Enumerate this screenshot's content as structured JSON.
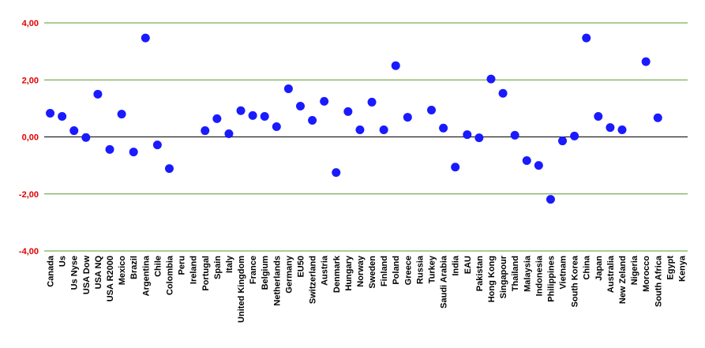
{
  "chart_data": {
    "type": "scatter",
    "categories": [
      "Canada",
      "Us",
      "Us Nyse",
      "USA Dow",
      "USA NQ",
      "USA R2000",
      "Mexico",
      "Brazil",
      "Argentina",
      "Chile",
      "Colombia",
      "Peru",
      "Ireland",
      "Portugal",
      "Spain",
      "Italy",
      "United Kingdom",
      "France",
      "Belgium",
      "Netherlands",
      "Germany",
      "EU50",
      "Switzerland",
      "Austria",
      "Denmark",
      "Hungary",
      "Norway",
      "Sweden",
      "Finland",
      "Poland",
      "Greece",
      "Russia",
      "Turkey",
      "Saudi Arabia",
      "India",
      "EAU",
      "Pakistan",
      "Hong Kong",
      "Singapour",
      "Thailand",
      "Malaysia",
      "Indonesia",
      "Philippines",
      "Vietnam",
      "South Korea",
      "China",
      "Japan",
      "Australia",
      "New Zeland",
      "Nigeria",
      "Morocco",
      "South Africa",
      "Egypt",
      "Kenya"
    ],
    "values": [
      0.83,
      0.72,
      0.22,
      -0.02,
      1.5,
      -0.44,
      0.8,
      -0.53,
      3.47,
      -0.28,
      -1.11,
      null,
      null,
      0.22,
      0.64,
      0.11,
      0.92,
      0.75,
      0.72,
      0.36,
      1.69,
      1.08,
      0.58,
      1.25,
      -1.25,
      0.89,
      0.25,
      1.22,
      0.25,
      2.5,
      0.69,
      null,
      0.94,
      0.31,
      -1.06,
      0.08,
      -0.03,
      2.03,
      1.53,
      0.06,
      -0.83,
      -1.0,
      -2.19,
      -0.14,
      0.03,
      3.47,
      0.72,
      0.33,
      0.25,
      null,
      2.64,
      0.67,
      null,
      null
    ],
    "color": "#1a1aff",
    "ylim": [
      -4,
      4
    ],
    "yticks": [
      {
        "value": -4,
        "label": "-4,00"
      },
      {
        "value": -2,
        "label": "-2,00"
      },
      {
        "value": 0,
        "label": "0,00"
      },
      {
        "value": 2,
        "label": "2,00"
      },
      {
        "value": 4,
        "label": "4,00"
      }
    ],
    "grid": true
  }
}
